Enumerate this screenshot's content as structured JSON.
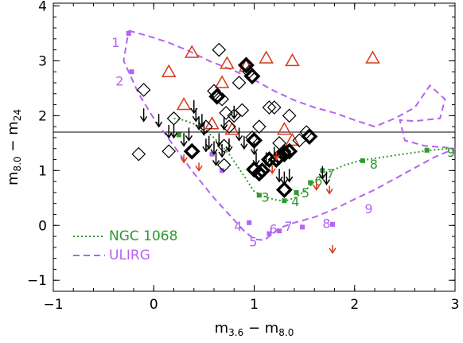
{
  "chart_data": {
    "type": "scatter",
    "xlabel": "m_{3.6} − m_{8.0}",
    "ylabel": "m_{8.0} − m_{24}",
    "xlim": [
      -1,
      3
    ],
    "ylim": [
      -1.2,
      4.05
    ],
    "x_ticks": [
      "−1",
      "0",
      "1",
      "2",
      "3"
    ],
    "y_ticks": [
      "−1",
      "0",
      "1",
      "2",
      "3",
      "4"
    ],
    "x_tick_values": [
      -1,
      0,
      1,
      2,
      3
    ],
    "y_tick_values": [
      -1,
      0,
      1,
      2,
      3,
      4
    ],
    "hline": 1.7,
    "colors": {
      "ngc1068": "#2e9a2e",
      "ulirg": "#b464f0",
      "triangle": "#d83818",
      "red_arrow": "#d83818",
      "black": "#000000"
    },
    "legend": {
      "placement": "bottom-left",
      "entries": [
        {
          "label": "NGC 1068",
          "series": "ngc1068"
        },
        {
          "label": "ULIRG",
          "series": "ulirg"
        }
      ]
    },
    "models": [
      {
        "name": "NGC 1068",
        "key": "ngc1068",
        "style": "dotted",
        "points": [
          [
            0.2,
            1.95
          ],
          [
            0.3,
            1.92
          ],
          [
            0.4,
            1.85
          ],
          [
            0.5,
            1.75
          ],
          [
            0.6,
            1.6
          ],
          [
            0.75,
            1.3
          ],
          [
            0.9,
            0.9
          ],
          [
            1.0,
            0.62
          ],
          [
            1.1,
            0.53
          ],
          [
            1.2,
            0.47
          ],
          [
            1.3,
            0.44
          ],
          [
            1.4,
            0.5
          ],
          [
            1.5,
            0.62
          ],
          [
            1.6,
            0.8
          ],
          [
            1.75,
            0.98
          ],
          [
            1.9,
            1.1
          ],
          [
            2.05,
            1.18
          ],
          [
            2.3,
            1.25
          ],
          [
            2.6,
            1.33
          ],
          [
            2.8,
            1.38
          ],
          [
            2.95,
            1.4
          ]
        ],
        "markers": [
          [
            0.25,
            1.65
          ],
          [
            1.05,
            0.55
          ],
          [
            1.3,
            0.45
          ],
          [
            1.42,
            0.6
          ],
          [
            1.56,
            0.78
          ],
          [
            1.68,
            1.0
          ],
          [
            2.08,
            1.18
          ],
          [
            2.72,
            1.37
          ]
        ],
        "labels": [
          {
            "text": "3",
            "x": 1.07,
            "y": 0.43
          },
          {
            "text": "4",
            "x": 1.37,
            "y": 0.35
          },
          {
            "text": "5",
            "x": 1.47,
            "y": 0.51
          },
          {
            "text": "6",
            "x": 1.6,
            "y": 0.73
          },
          {
            "text": "7",
            "x": 1.72,
            "y": 0.86
          },
          {
            "text": "8",
            "x": 2.15,
            "y": 1.03
          },
          {
            "text": "9",
            "x": 2.92,
            "y": 1.25
          }
        ]
      },
      {
        "name": "ULIRG",
        "key": "ulirg",
        "style": "dashed",
        "points": [
          [
            -0.25,
            3.55
          ],
          [
            -0.05,
            3.45
          ],
          [
            0.15,
            3.33
          ],
          [
            0.35,
            3.18
          ],
          [
            0.55,
            3.0
          ],
          [
            0.8,
            2.82
          ],
          [
            1.0,
            2.65
          ],
          [
            1.2,
            2.45
          ],
          [
            1.4,
            2.28
          ],
          [
            1.6,
            2.15
          ],
          [
            1.8,
            2.05
          ],
          [
            2.0,
            1.92
          ],
          [
            2.2,
            1.8
          ],
          [
            2.4,
            1.95
          ],
          [
            2.6,
            2.15
          ],
          [
            2.75,
            2.55
          ],
          [
            2.9,
            2.3
          ],
          [
            2.85,
            1.95
          ],
          [
            2.6,
            1.9
          ],
          [
            2.45,
            1.92
          ],
          [
            2.5,
            1.55
          ],
          [
            2.7,
            1.45
          ],
          [
            2.9,
            1.42
          ],
          [
            3.0,
            1.4
          ],
          [
            2.8,
            1.25
          ],
          [
            2.6,
            1.05
          ],
          [
            2.4,
            0.85
          ],
          [
            2.2,
            0.65
          ],
          [
            2.0,
            0.48
          ],
          [
            1.8,
            0.3
          ],
          [
            1.6,
            0.15
          ],
          [
            1.4,
            0.05
          ],
          [
            1.25,
            -0.05
          ],
          [
            1.15,
            -0.2
          ],
          [
            1.1,
            -0.27
          ],
          [
            1.0,
            -0.25
          ],
          [
            0.9,
            -0.1
          ],
          [
            0.8,
            0.1
          ],
          [
            0.6,
            0.5
          ],
          [
            0.4,
            0.95
          ],
          [
            0.2,
            1.45
          ],
          [
            0.0,
            1.95
          ],
          [
            -0.15,
            2.4
          ],
          [
            -0.3,
            3.0
          ],
          [
            -0.25,
            3.55
          ]
        ],
        "markers": [
          [
            -0.25,
            3.5
          ],
          [
            -0.22,
            2.8
          ],
          [
            0.58,
            1.3
          ],
          [
            0.68,
            1.0
          ],
          [
            0.95,
            0.05
          ],
          [
            1.15,
            -0.15
          ],
          [
            1.25,
            -0.1
          ],
          [
            1.48,
            -0.03
          ],
          [
            1.78,
            0.02
          ]
        ],
        "labels": [
          {
            "text": "1",
            "x": -0.42,
            "y": 3.25
          },
          {
            "text": "2",
            "x": -0.38,
            "y": 2.55
          },
          {
            "text": "4",
            "x": 0.8,
            "y": -0.1
          },
          {
            "text": "5",
            "x": 0.95,
            "y": -0.38
          },
          {
            "text": "6",
            "x": 1.15,
            "y": -0.15
          },
          {
            "text": "7",
            "x": 1.3,
            "y": -0.1
          },
          {
            "text": "8",
            "x": 1.68,
            "y": -0.05
          },
          {
            "text": "9",
            "x": 2.1,
            "y": 0.22
          },
          {
            "text": "9",
            "x": 2.92,
            "y": 1.25
          }
        ]
      }
    ],
    "diamonds_open": [
      [
        -0.1,
        2.47
      ],
      [
        -0.15,
        1.3
      ],
      [
        0.15,
        1.35
      ],
      [
        0.2,
        1.95
      ],
      [
        0.38,
        1.35
      ],
      [
        0.52,
        1.8
      ],
      [
        0.6,
        2.45
      ],
      [
        0.65,
        3.2
      ],
      [
        0.68,
        2.3
      ],
      [
        0.72,
        2.05
      ],
      [
        0.75,
        1.8
      ],
      [
        0.8,
        2.0
      ],
      [
        0.85,
        2.6
      ],
      [
        0.88,
        2.1
      ],
      [
        0.92,
        2.9
      ],
      [
        0.98,
        1.6
      ],
      [
        1.05,
        1.8
      ],
      [
        1.15,
        2.15
      ],
      [
        1.2,
        2.15
      ],
      [
        1.25,
        1.5
      ],
      [
        1.3,
        1.35
      ],
      [
        1.35,
        2.0
      ],
      [
        1.45,
        1.55
      ],
      [
        1.52,
        1.7
      ],
      [
        0.7,
        1.45
      ],
      [
        0.7,
        1.1
      ],
      [
        0.95,
        2.8
      ]
    ],
    "diamonds_bold": [
      [
        0.63,
        2.35
      ],
      [
        0.92,
        2.92
      ],
      [
        0.98,
        2.72
      ],
      [
        1.0,
        1.55
      ],
      [
        1.0,
        1.02
      ],
      [
        1.05,
        0.95
      ],
      [
        1.08,
        1.0
      ],
      [
        1.15,
        1.2
      ],
      [
        1.22,
        1.2
      ],
      [
        1.25,
        1.25
      ],
      [
        1.3,
        1.3
      ],
      [
        1.35,
        1.35
      ],
      [
        1.3,
        0.65
      ],
      [
        1.55,
        1.62
      ],
      [
        0.38,
        1.35
      ]
    ],
    "triangles": [
      [
        0.15,
        2.8
      ],
      [
        0.3,
        2.2
      ],
      [
        0.38,
        3.15
      ],
      [
        0.58,
        1.85
      ],
      [
        0.68,
        2.6
      ],
      [
        0.73,
        2.95
      ],
      [
        0.78,
        1.75
      ],
      [
        0.92,
        2.9
      ],
      [
        1.12,
        3.05
      ],
      [
        1.3,
        1.75
      ],
      [
        1.38,
        3.0
      ],
      [
        1.38,
        1.55
      ],
      [
        2.18,
        3.05
      ]
    ],
    "arrows_black": [
      [
        -0.1,
        1.9
      ],
      [
        0.05,
        1.8
      ],
      [
        0.15,
        1.6
      ],
      [
        0.2,
        1.6
      ],
      [
        0.3,
        1.45
      ],
      [
        0.35,
        1.55
      ],
      [
        0.4,
        2.05
      ],
      [
        0.42,
        1.9
      ],
      [
        0.45,
        1.75
      ],
      [
        0.48,
        1.8
      ],
      [
        0.5,
        1.65
      ],
      [
        0.52,
        1.35
      ],
      [
        0.55,
        1.4
      ],
      [
        0.6,
        1.3
      ],
      [
        0.62,
        1.1
      ],
      [
        0.65,
        1.45
      ],
      [
        0.68,
        1.25
      ],
      [
        0.7,
        1.75
      ],
      [
        0.75,
        1.35
      ],
      [
        0.8,
        1.95
      ],
      [
        0.85,
        1.55
      ],
      [
        0.9,
        1.4
      ],
      [
        1.0,
        1.3
      ],
      [
        1.02,
        1.1
      ],
      [
        1.12,
        1.1
      ],
      [
        1.2,
        1.2
      ],
      [
        1.25,
        0.8
      ],
      [
        1.3,
        0.75
      ],
      [
        1.35,
        0.8
      ],
      [
        1.68,
        0.85
      ],
      [
        1.72,
        0.75
      ]
    ],
    "arrows_red": [
      [
        0.3,
        1.15
      ],
      [
        0.45,
        1.0
      ],
      [
        1.18,
        0.95
      ],
      [
        1.22,
        1.2
      ],
      [
        1.62,
        0.65
      ],
      [
        1.75,
        0.58
      ],
      [
        1.78,
        -0.5
      ]
    ]
  }
}
